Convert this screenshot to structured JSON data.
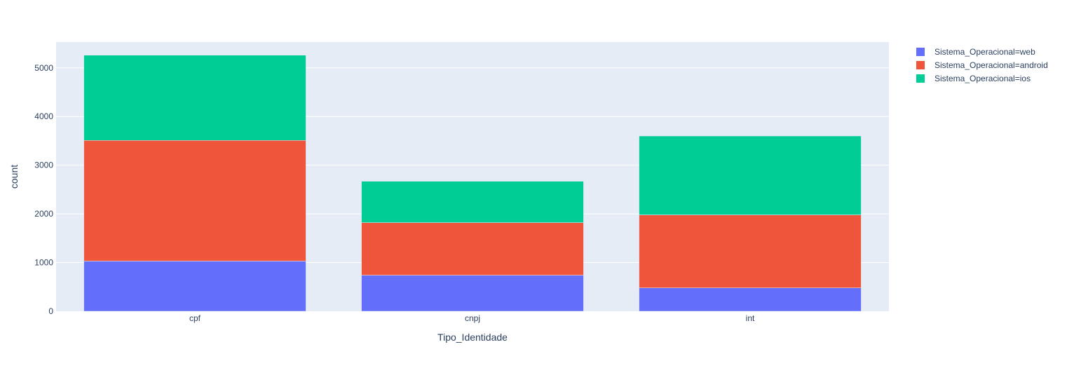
{
  "chart_data": {
    "type": "bar",
    "barmode": "stack",
    "categories": [
      "cpf",
      "cnpj",
      "int"
    ],
    "series": [
      {
        "name": "Sistema_Operacional=web",
        "values": [
          1030,
          740,
          480
        ],
        "color": "#636efa"
      },
      {
        "name": "Sistema_Operacional=android",
        "values": [
          2480,
          1080,
          1500
        ],
        "color": "#ef553b"
      },
      {
        "name": "Sistema_Operacional=ios",
        "values": [
          1750,
          850,
          1620
        ],
        "color": "#00cc96"
      }
    ],
    "xlabel": "Tipo_Identidade",
    "ylabel": "count",
    "ylim": [
      0,
      5530
    ],
    "yticks": [
      0,
      1000,
      2000,
      3000,
      4000,
      5000
    ],
    "ytick_labels": [
      "0",
      "1000",
      "2000",
      "3000",
      "4000",
      "5000"
    ],
    "grid": true,
    "plot_background": "#e5ecf6",
    "legend_position": "top-right"
  }
}
